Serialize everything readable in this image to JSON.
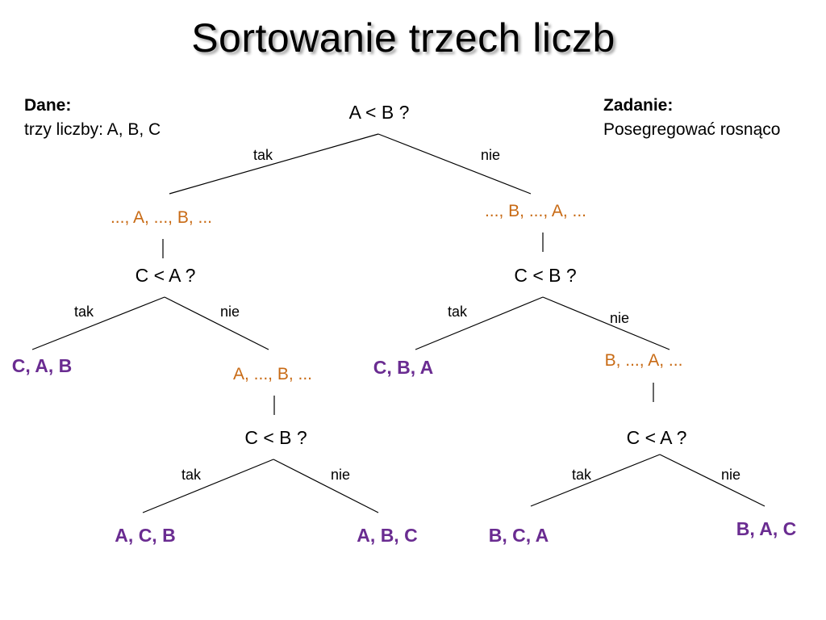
{
  "title": "Sortowanie trzech liczb",
  "given": {
    "heading": "Dane:",
    "text": "trzy liczby: A, B, C"
  },
  "task": {
    "heading": "Zadanie:",
    "text": "Posegregować rosnąco"
  },
  "tree": {
    "q1": "A < B ?",
    "q1_yes": "tak",
    "q1_no": "nie",
    "p_left": "..., A, ..., B, ...",
    "p_right": "..., B, ..., A, ...",
    "q2_left": "C < A ?",
    "q2_right": "C < B ?",
    "q2l_yes": "tak",
    "q2l_no": "nie",
    "q2r_yes": "tak",
    "q2r_no": "nie",
    "leaf_cab": "C, A, B",
    "p_left2": "A, ..., B, ...",
    "leaf_cba": "C, B, A",
    "p_right2": "B, ..., A, ...",
    "q3_left": "C < B ?",
    "q3_right": "C < A ?",
    "q3l_yes": "tak",
    "q3l_no": "nie",
    "q3r_yes": "tak",
    "q3r_no": "nie",
    "leaf_acb": "A, C, B",
    "leaf_abc": "A, B, C",
    "leaf_bca": "B, C, A",
    "leaf_bac": "B, A, C"
  },
  "colors": {
    "partial": "#c86a14",
    "leaf": "#6a2c91",
    "text": "#000000",
    "background": "#ffffff"
  }
}
